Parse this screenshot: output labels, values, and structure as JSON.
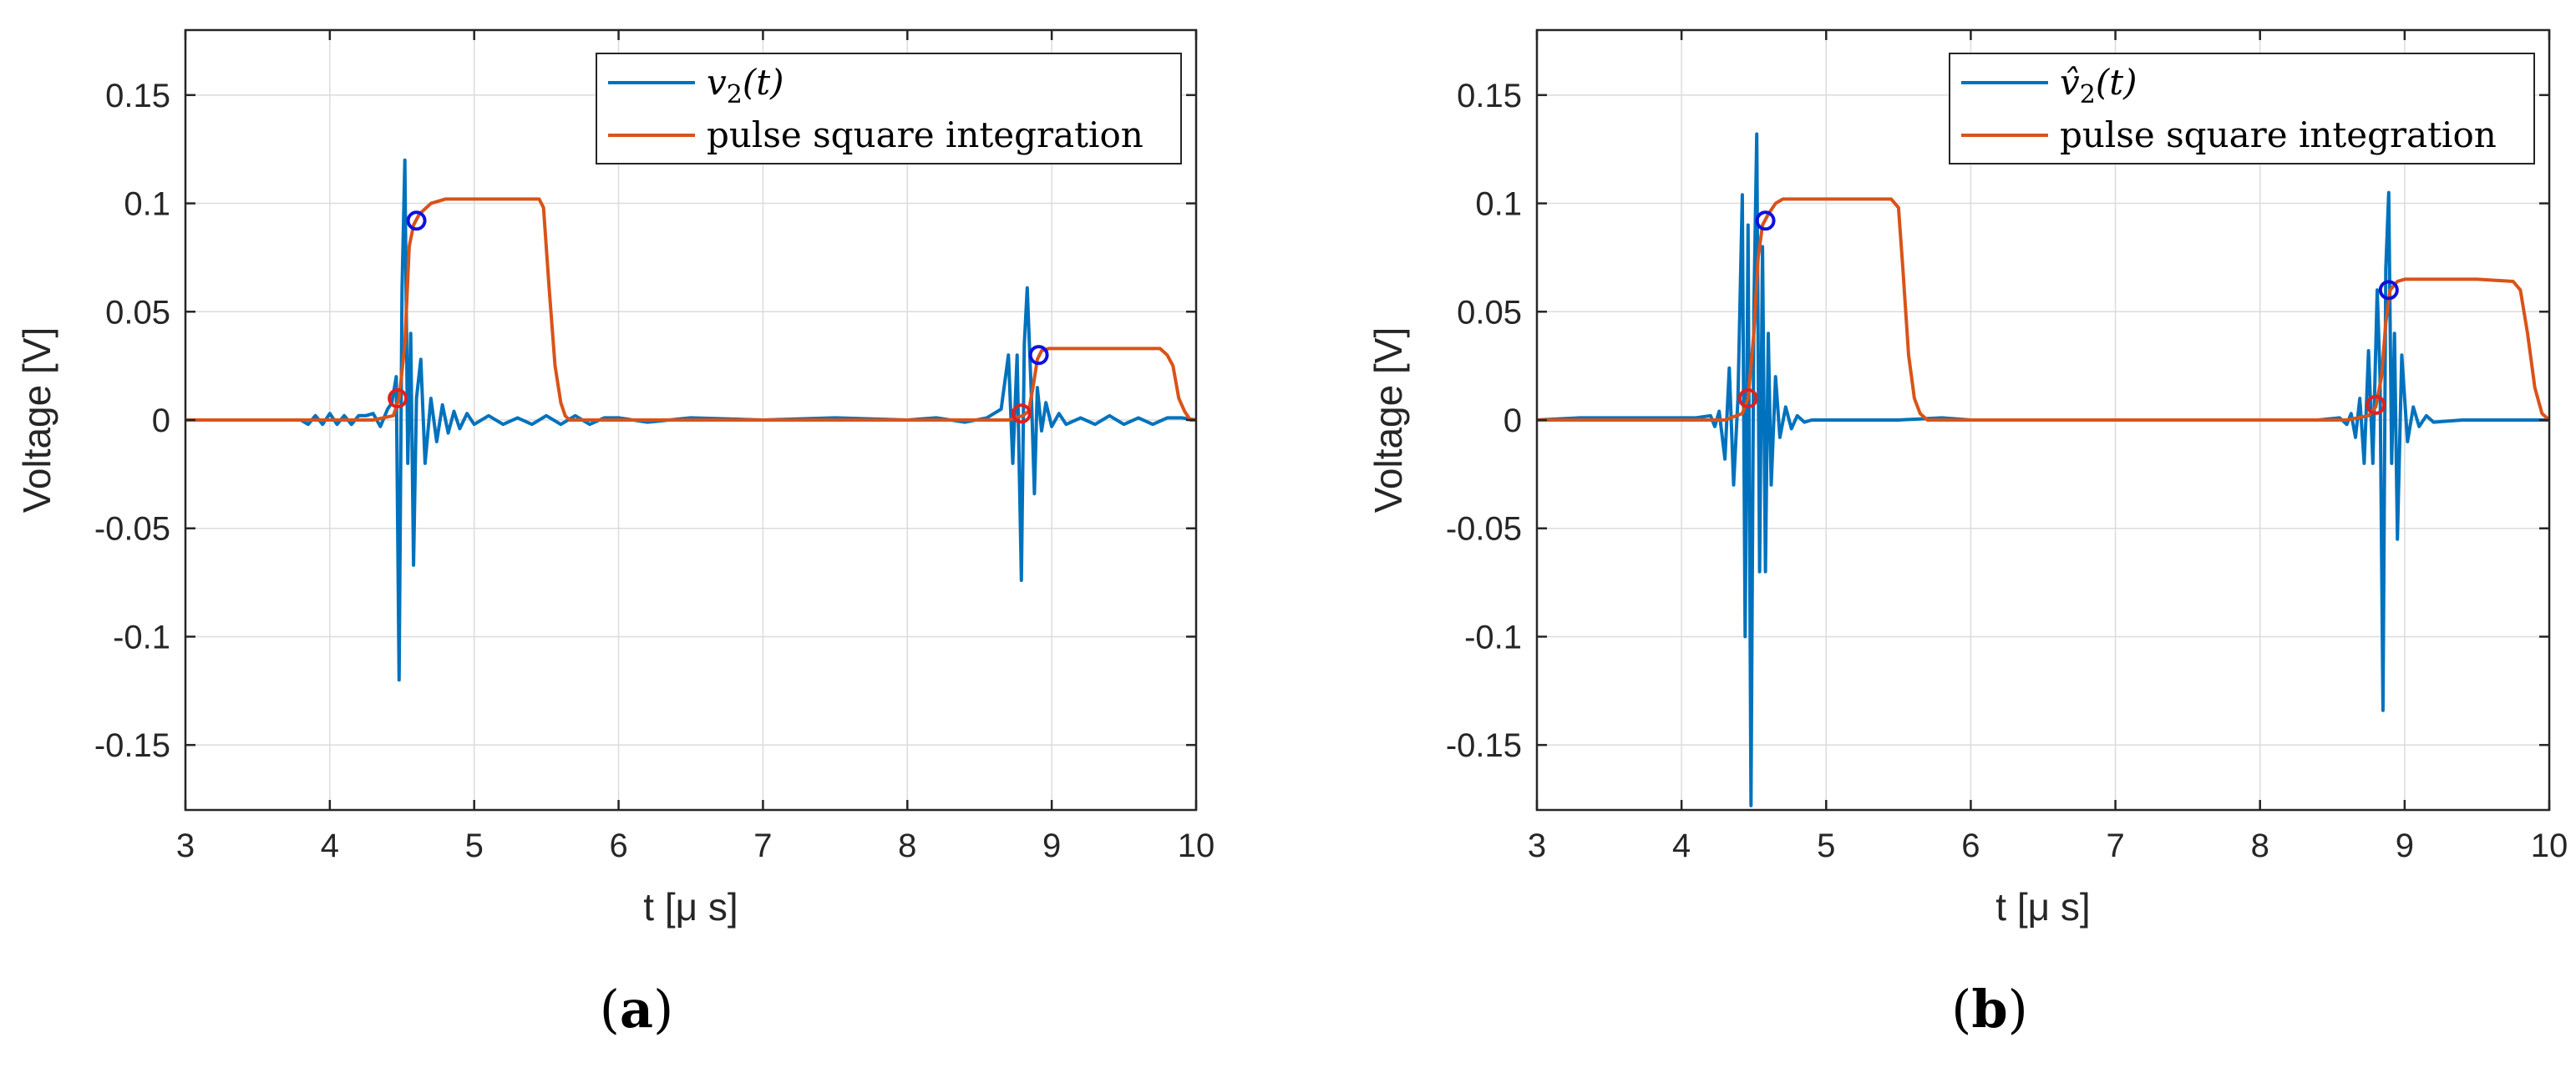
{
  "chart_data": [
    {
      "type": "line",
      "panel_label": "(a)",
      "xlabel": "t [μ s]",
      "ylabel": "Voltage [V]",
      "xlim": [
        3,
        10
      ],
      "ylim": [
        -0.18,
        0.18
      ],
      "xticks": [
        3,
        4,
        5,
        6,
        7,
        8,
        9,
        10
      ],
      "xtick_labels": [
        "3",
        "4",
        "5",
        "6",
        "7",
        "8",
        "9",
        "10"
      ],
      "yticks": [
        0.15,
        0.1,
        0.05,
        0,
        -0.05,
        -0.1,
        -0.15
      ],
      "ytick_labels": [
        "0.15",
        "0.1",
        "0.05",
        "0",
        "-0.05",
        "-0.1",
        "-0.15"
      ],
      "grid": true,
      "legend_position": "top-right",
      "series": [
        {
          "name": "v₂(t)",
          "legend_main": "v",
          "legend_sub": "2",
          "legend_tail": "(t)",
          "color": "#0072BD",
          "x": [
            3.0,
            3.8,
            3.85,
            3.9,
            3.95,
            4.0,
            4.05,
            4.1,
            4.15,
            4.2,
            4.25,
            4.3,
            4.35,
            4.4,
            4.43,
            4.46,
            4.48,
            4.5,
            4.52,
            4.54,
            4.56,
            4.58,
            4.6,
            4.63,
            4.66,
            4.7,
            4.74,
            4.78,
            4.82,
            4.86,
            4.9,
            4.95,
            5.0,
            5.1,
            5.2,
            5.3,
            5.4,
            5.5,
            5.6,
            5.7,
            5.8,
            5.9,
            6.0,
            6.2,
            6.5,
            7.0,
            7.5,
            8.0,
            8.2,
            8.4,
            8.55,
            8.6,
            8.65,
            8.7,
            8.73,
            8.76,
            8.79,
            8.81,
            8.83,
            8.86,
            8.88,
            8.9,
            8.93,
            8.96,
            9.0,
            9.05,
            9.1,
            9.2,
            9.3,
            9.4,
            9.5,
            9.6,
            9.7,
            9.8,
            9.9,
            10.0
          ],
          "y": [
            0.0,
            0.0,
            -0.002,
            0.002,
            -0.002,
            0.003,
            -0.002,
            0.002,
            -0.002,
            0.002,
            0.002,
            0.003,
            -0.003,
            0.005,
            0.008,
            0.02,
            -0.12,
            0.06,
            0.12,
            -0.02,
            0.04,
            -0.067,
            0.01,
            0.028,
            -0.02,
            0.01,
            -0.01,
            0.007,
            -0.006,
            0.004,
            -0.004,
            0.003,
            -0.002,
            0.002,
            -0.002,
            0.001,
            -0.002,
            0.002,
            -0.002,
            0.002,
            -0.002,
            0.001,
            0.001,
            -0.001,
            0.001,
            0.0,
            0.001,
            0.0,
            0.001,
            -0.001,
            0.001,
            0.003,
            0.005,
            0.03,
            -0.02,
            0.03,
            -0.074,
            0.035,
            0.061,
            0.01,
            -0.034,
            0.015,
            -0.005,
            0.008,
            -0.003,
            0.003,
            -0.002,
            0.001,
            -0.002,
            0.002,
            -0.002,
            0.001,
            -0.002,
            0.001,
            0.001,
            0.0
          ]
        },
        {
          "name": "pulse square integration",
          "color": "#D95319",
          "x": [
            3.0,
            4.3,
            4.44,
            4.48,
            4.52,
            4.55,
            4.58,
            4.62,
            4.7,
            4.8,
            5.0,
            5.3,
            5.45,
            5.48,
            5.52,
            5.56,
            5.6,
            5.63,
            5.66,
            5.7,
            8.7,
            8.8,
            8.84,
            8.87,
            8.9,
            8.93,
            8.98,
            9.5,
            9.75,
            9.8,
            9.84,
            9.88,
            9.92,
            9.96,
            10.0
          ],
          "y": [
            0.0,
            0.0,
            0.002,
            0.01,
            0.035,
            0.08,
            0.09,
            0.095,
            0.1,
            0.102,
            0.102,
            0.102,
            0.102,
            0.098,
            0.06,
            0.025,
            0.008,
            0.002,
            0.0,
            0.0,
            0.0,
            0.002,
            0.004,
            0.015,
            0.028,
            0.032,
            0.033,
            0.033,
            0.033,
            0.03,
            0.025,
            0.01,
            0.004,
            0.0,
            0.0
          ]
        }
      ],
      "markers": [
        {
          "x": 4.47,
          "y": 0.01,
          "color": "#E02020"
        },
        {
          "x": 4.6,
          "y": 0.092,
          "color": "#1010E0"
        },
        {
          "x": 8.79,
          "y": 0.003,
          "color": "#E02020"
        },
        {
          "x": 8.91,
          "y": 0.03,
          "color": "#1010E0"
        }
      ]
    },
    {
      "type": "line",
      "panel_label": "(b)",
      "xlabel": "t [μ s]",
      "ylabel": "Voltage [V]",
      "xlim": [
        3,
        10
      ],
      "ylim": [
        -0.18,
        0.18
      ],
      "xticks": [
        3,
        4,
        5,
        6,
        7,
        8,
        9,
        10
      ],
      "xtick_labels": [
        "3",
        "4",
        "5",
        "6",
        "7",
        "8",
        "9",
        "10"
      ],
      "yticks": [
        0.15,
        0.1,
        0.05,
        0,
        -0.05,
        -0.1,
        -0.15
      ],
      "ytick_labels": [
        "0.15",
        "0.1",
        "0.05",
        "0",
        "-0.05",
        "-0.1",
        "-0.15"
      ],
      "grid": true,
      "legend_position": "top-right",
      "series": [
        {
          "name": "v̂₂(t)",
          "legend_main": "v̂",
          "legend_sub": "2",
          "legend_tail": "(t)",
          "color": "#0072BD",
          "x": [
            3.0,
            3.3,
            3.6,
            3.9,
            4.1,
            4.2,
            4.23,
            4.26,
            4.3,
            4.33,
            4.36,
            4.39,
            4.42,
            4.44,
            4.46,
            4.48,
            4.5,
            4.52,
            4.54,
            4.56,
            4.58,
            4.6,
            4.62,
            4.65,
            4.68,
            4.72,
            4.76,
            4.8,
            4.85,
            4.9,
            5.0,
            5.2,
            5.5,
            5.8,
            6.0,
            6.5,
            7.0,
            7.5,
            8.0,
            8.4,
            8.55,
            8.6,
            8.63,
            8.66,
            8.69,
            8.72,
            8.75,
            8.78,
            8.81,
            8.83,
            8.85,
            8.87,
            8.89,
            8.91,
            8.93,
            8.95,
            8.98,
            9.02,
            9.06,
            9.1,
            9.15,
            9.2,
            9.4,
            9.6,
            9.8,
            10.0
          ],
          "y": [
            0.0,
            0.001,
            0.001,
            0.001,
            0.001,
            0.002,
            -0.003,
            0.004,
            -0.018,
            0.024,
            -0.03,
            0.01,
            0.104,
            -0.1,
            0.09,
            -0.178,
            0.05,
            0.132,
            -0.07,
            0.08,
            -0.07,
            0.04,
            -0.03,
            0.02,
            -0.008,
            0.006,
            -0.004,
            0.002,
            -0.001,
            0.0,
            0.0,
            0.0,
            0.0,
            0.001,
            0.0,
            0.0,
            0.0,
            0.0,
            0.0,
            0.0,
            0.001,
            -0.002,
            0.003,
            -0.008,
            0.01,
            -0.02,
            0.032,
            -0.02,
            0.06,
            0.02,
            -0.134,
            0.07,
            0.105,
            -0.02,
            0.04,
            -0.055,
            0.03,
            -0.01,
            0.006,
            -0.003,
            0.002,
            -0.001,
            0.0,
            0.0,
            0.0,
            0.0
          ]
        },
        {
          "name": "pulse square integration",
          "color": "#D95319",
          "x": [
            3.0,
            4.3,
            4.42,
            4.46,
            4.5,
            4.53,
            4.56,
            4.6,
            4.65,
            4.7,
            5.0,
            5.3,
            5.45,
            5.5,
            5.53,
            5.57,
            5.61,
            5.65,
            5.7,
            5.75,
            8.6,
            8.75,
            8.8,
            8.84,
            8.87,
            8.9,
            8.95,
            9.0,
            9.5,
            9.75,
            9.8,
            9.85,
            9.9,
            9.95,
            10.0
          ],
          "y": [
            0.0,
            0.0,
            0.003,
            0.01,
            0.04,
            0.075,
            0.09,
            0.095,
            0.1,
            0.102,
            0.102,
            0.102,
            0.102,
            0.098,
            0.07,
            0.03,
            0.01,
            0.003,
            0.0,
            0.0,
            0.0,
            0.002,
            0.006,
            0.02,
            0.045,
            0.06,
            0.064,
            0.065,
            0.065,
            0.064,
            0.06,
            0.04,
            0.015,
            0.003,
            0.0
          ]
        }
      ],
      "markers": [
        {
          "x": 4.46,
          "y": 0.01,
          "color": "#E02020"
        },
        {
          "x": 4.58,
          "y": 0.092,
          "color": "#1010E0"
        },
        {
          "x": 8.8,
          "y": 0.007,
          "color": "#E02020"
        },
        {
          "x": 8.89,
          "y": 0.06,
          "color": "#1010E0"
        }
      ]
    }
  ]
}
